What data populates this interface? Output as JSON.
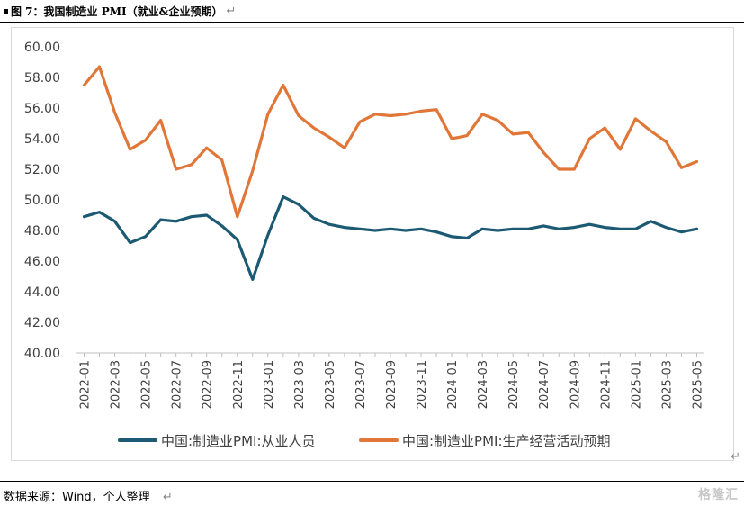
{
  "header": {
    "title": "图 7：我国制造业 PMI（就业&企业预期）",
    "return_mark": "↵"
  },
  "footer": {
    "source": "数据来源：Wind，个人整理",
    "return_mark": "↵",
    "right_mark": "↵"
  },
  "watermark": {
    "text": "格隆汇"
  },
  "colors": {
    "employment": "#1b5a72",
    "expectation": "#e07637",
    "axis": "#bfbfbf"
  },
  "chart_data": {
    "type": "line",
    "title": "",
    "xlabel": "",
    "ylabel": "",
    "ylim": [
      40,
      60
    ],
    "yticks": [
      "40.00",
      "42.00",
      "44.00",
      "46.00",
      "48.00",
      "50.00",
      "52.00",
      "54.00",
      "56.00",
      "58.00",
      "60.00"
    ],
    "x": [
      "2022-01",
      "2022-02",
      "2022-03",
      "2022-04",
      "2022-05",
      "2022-06",
      "2022-07",
      "2022-08",
      "2022-09",
      "2022-10",
      "2022-11",
      "2022-12",
      "2023-01",
      "2023-02",
      "2023-03",
      "2023-04",
      "2023-05",
      "2023-06",
      "2023-07",
      "2023-08",
      "2023-09",
      "2023-10",
      "2023-11",
      "2023-12",
      "2024-01",
      "2024-02",
      "2024-03",
      "2024-04",
      "2024-05",
      "2024-06",
      "2024-07",
      "2024-08",
      "2024-09",
      "2024-10",
      "2024-11",
      "2024-12",
      "2025-01",
      "2025-02",
      "2025-03",
      "2025-04",
      "2025-05"
    ],
    "xtick_labels": [
      "2022-01",
      "2022-03",
      "2022-05",
      "2022-07",
      "2022-09",
      "2022-11",
      "2023-01",
      "2023-03",
      "2023-05",
      "2023-07",
      "2023-09",
      "2023-11",
      "2024-01",
      "2024-03",
      "2024-05",
      "2024-07",
      "2024-09",
      "2024-11",
      "2025-01",
      "2025-03",
      "2025-05"
    ],
    "legend_position": "bottom",
    "grid": false,
    "series": [
      {
        "name": "中国:制造业PMI:从业人员",
        "values": [
          48.9,
          49.2,
          48.6,
          47.2,
          47.6,
          48.7,
          48.6,
          48.9,
          49.0,
          48.3,
          47.4,
          44.8,
          47.7,
          50.2,
          49.7,
          48.8,
          48.4,
          48.2,
          48.1,
          48.0,
          48.1,
          48.0,
          48.1,
          47.9,
          47.6,
          47.5,
          48.1,
          48.0,
          48.1,
          48.1,
          48.3,
          48.1,
          48.2,
          48.4,
          48.2,
          48.1,
          48.1,
          48.6,
          48.2,
          47.9,
          48.1
        ]
      },
      {
        "name": "中国:制造业PMI:生产经营活动预期",
        "values": [
          57.5,
          58.7,
          55.7,
          53.3,
          53.9,
          55.2,
          52.0,
          52.3,
          53.4,
          52.6,
          48.9,
          51.9,
          55.6,
          57.5,
          55.5,
          54.7,
          54.1,
          53.4,
          55.1,
          55.6,
          55.5,
          55.6,
          55.8,
          55.9,
          54.0,
          54.2,
          55.6,
          55.2,
          54.3,
          54.4,
          53.1,
          52.0,
          52.0,
          54.0,
          54.7,
          53.3,
          55.3,
          54.5,
          53.8,
          52.1,
          52.5
        ]
      }
    ]
  }
}
